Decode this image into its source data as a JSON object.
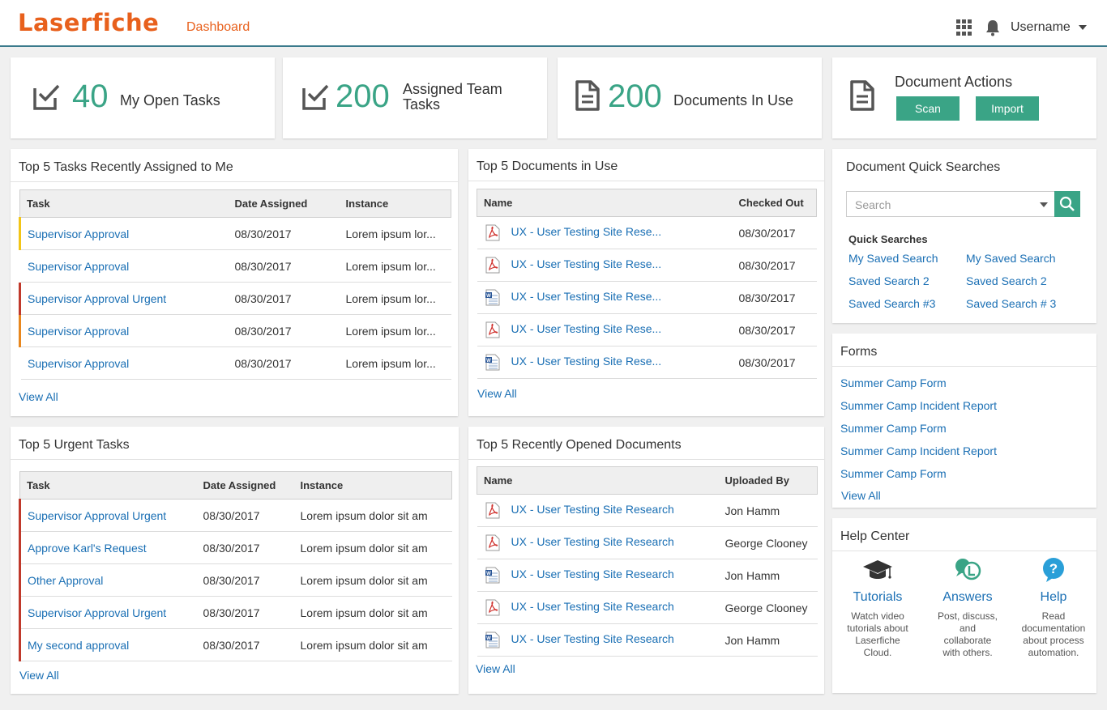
{
  "header": {
    "logo": "Laserfiche",
    "nav_dashboard": "Dashboard",
    "username": "Username",
    "accent": "#e8601c"
  },
  "stats": [
    {
      "value": "40",
      "label": "My Open Tasks",
      "icon": "task-check-icon"
    },
    {
      "value": "200",
      "label_line1": "Assigned Team",
      "label_line2": "Tasks",
      "icon": "task-check-icon"
    },
    {
      "value": "200",
      "label": "Documents In Use",
      "icon": "document-icon"
    }
  ],
  "doc_actions": {
    "title": "Document Actions",
    "scan": "Scan",
    "import": "Import"
  },
  "assigned_tasks": {
    "title": "Top 5 Tasks Recently Assigned to Me",
    "columns": [
      "Task",
      "Date Assigned",
      "Instance"
    ],
    "rows": [
      {
        "task": "Supervisor Approval",
        "date": "08/30/2017",
        "instance": "Lorem ipsum lor...",
        "flag": "#f2c517"
      },
      {
        "task": "Supervisor Approval",
        "date": "08/30/2017",
        "instance": "Lorem ipsum lor...",
        "flag": "transparent"
      },
      {
        "task": "Supervisor Approval Urgent",
        "date": "08/30/2017",
        "instance": "Lorem ipsum lor...",
        "flag": "#c0392b"
      },
      {
        "task": "Supervisor Approval",
        "date": "08/30/2017",
        "instance": "Lorem ipsum lor...",
        "flag": "#e8871e"
      },
      {
        "task": "Supervisor Approval",
        "date": "08/30/2017",
        "instance": "Lorem ipsum lor...",
        "flag": "transparent"
      }
    ],
    "view_all": "View All"
  },
  "urgent_tasks": {
    "title": "Top 5 Urgent Tasks",
    "columns": [
      "Task",
      "Date Assigned",
      "Instance"
    ],
    "rows": [
      {
        "task": "Supervisor Approval Urgent",
        "date": "08/30/2017",
        "instance": "Lorem ipsum dolor sit am"
      },
      {
        "task": "Approve Karl's Request",
        "date": "08/30/2017",
        "instance": "Lorem ipsum dolor sit am"
      },
      {
        "task": "Other Approval",
        "date": "08/30/2017",
        "instance": "Lorem ipsum dolor sit am"
      },
      {
        "task": "Supervisor Approval Urgent",
        "date": "08/30/2017",
        "instance": "Lorem ipsum dolor sit am"
      },
      {
        "task": "My second approval",
        "date": "08/30/2017",
        "instance": "Lorem ipsum dolor sit am"
      }
    ],
    "flag": "#c0392b",
    "view_all": "View All"
  },
  "docs_in_use": {
    "title": "Top 5 Documents in Use",
    "columns": [
      "Name",
      "Checked Out"
    ],
    "rows": [
      {
        "name": "UX - User Testing Site Rese...",
        "date": "08/30/2017",
        "type": "pdf"
      },
      {
        "name": "UX - User Testing Site Rese...",
        "date": "08/30/2017",
        "type": "pdf"
      },
      {
        "name": "UX - User Testing Site Rese...",
        "date": "08/30/2017",
        "type": "word"
      },
      {
        "name": "UX - User Testing Site Rese...",
        "date": "08/30/2017",
        "type": "pdf"
      },
      {
        "name": "UX - User Testing Site Rese...",
        "date": "08/30/2017",
        "type": "word"
      }
    ],
    "view_all": "View All"
  },
  "recent_docs": {
    "title": "Top 5 Recently Opened Documents",
    "columns": [
      "Name",
      "Uploaded By"
    ],
    "rows": [
      {
        "name": "UX - User Testing Site Research",
        "by": "Jon Hamm",
        "type": "pdf"
      },
      {
        "name": "UX - User Testing Site Research",
        "by": "George Clooney",
        "type": "pdf"
      },
      {
        "name": "UX - User Testing Site Research",
        "by": "Jon Hamm",
        "type": "word"
      },
      {
        "name": "UX - User Testing Site Research",
        "by": "George Clooney",
        "type": "pdf"
      },
      {
        "name": "UX - User Testing Site Research",
        "by": "Jon Hamm",
        "type": "word"
      }
    ],
    "view_all": "View All"
  },
  "quick_searches": {
    "title": "Document Quick Searches",
    "placeholder": "Search",
    "heading": "Quick Searches",
    "links": [
      "My Saved Search",
      "My Saved Search",
      "Saved Search 2",
      "Saved Search 2",
      "Saved Search #3",
      "Saved Search # 3"
    ]
  },
  "forms": {
    "title": "Forms",
    "links": [
      "Summer Camp Form",
      "Summer Camp Incident Report",
      "Summer Camp Form",
      "Summer Camp Incident Report",
      "Summer Camp Form"
    ],
    "view_all": "View All"
  },
  "help_center": {
    "title": "Help Center",
    "items": [
      {
        "title": "Tutorials",
        "desc": [
          "Watch video",
          "tutorials about",
          "Laserfiche",
          "Cloud."
        ],
        "icon": "graduation-cap-icon"
      },
      {
        "title": "Answers",
        "desc": [
          "Post, discuss,",
          "and",
          "collaborate",
          "with others."
        ],
        "icon": "chat-bubbles-icon"
      },
      {
        "title": "Help",
        "desc": [
          "Read",
          "documentation",
          "about process",
          "automation."
        ],
        "icon": "help-question-icon"
      }
    ]
  },
  "colors": {
    "green": "#3aa486",
    "link": "#1a6fb4",
    "urgent": "#c0392b"
  }
}
